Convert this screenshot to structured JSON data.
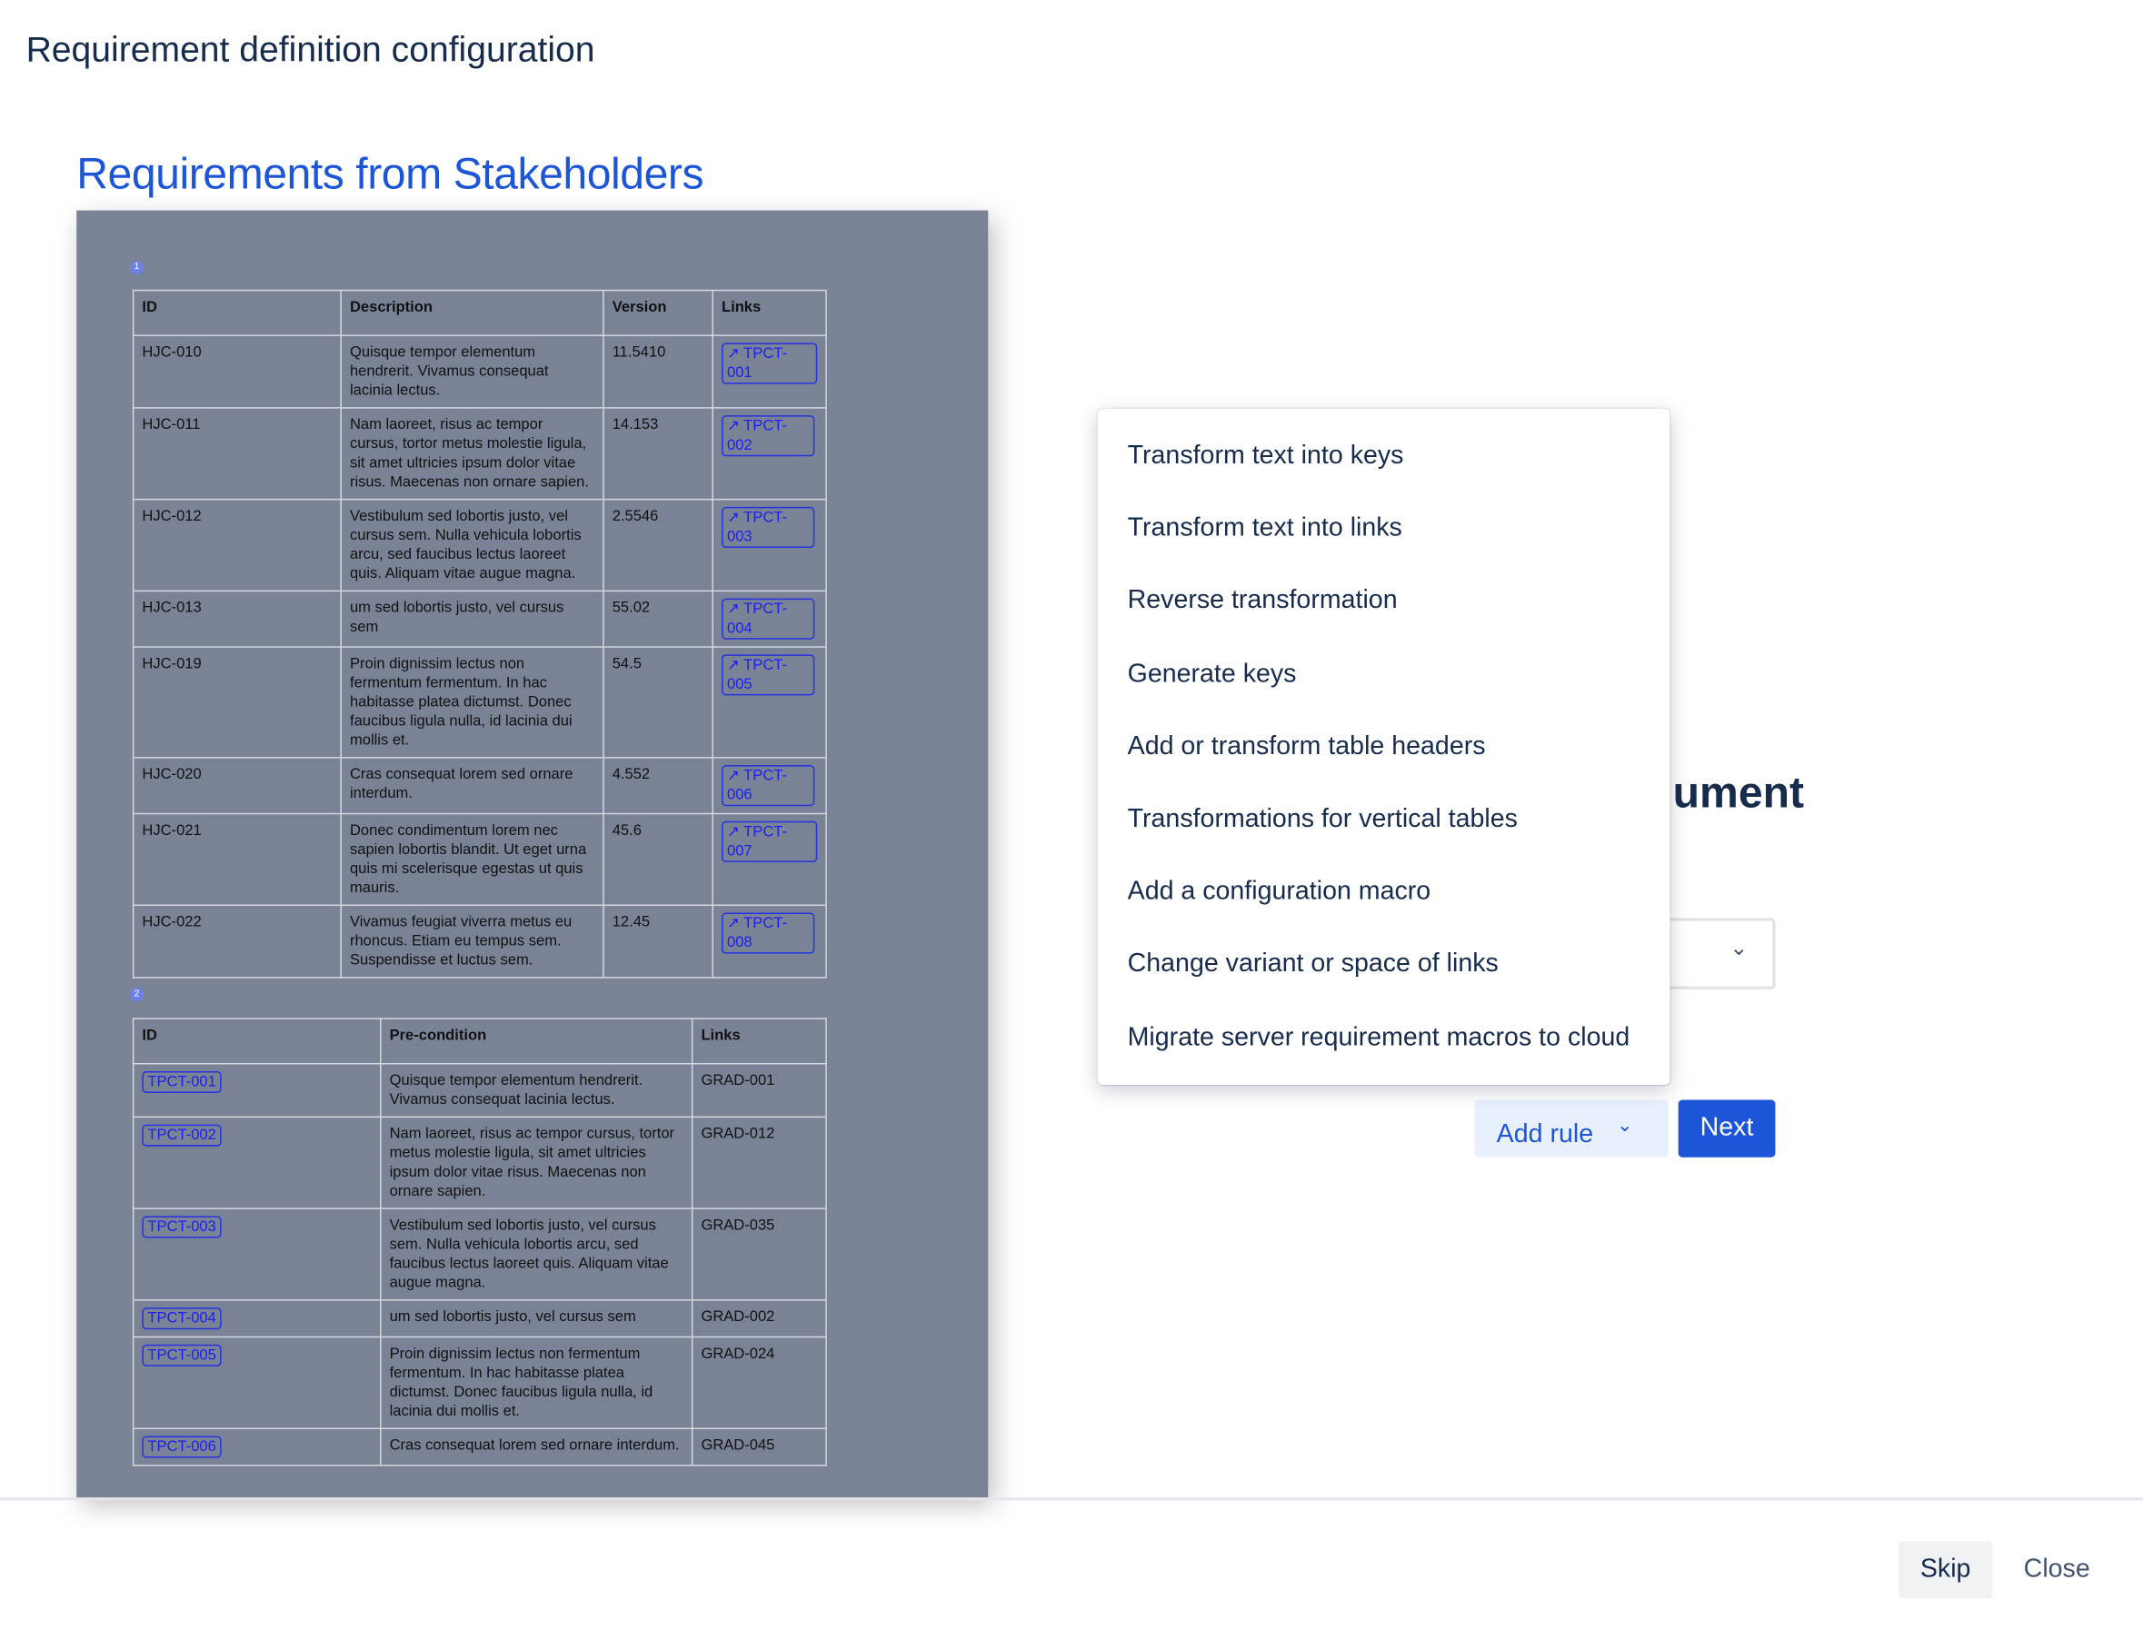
{
  "page_title": "Requirement definition configuration",
  "document_title": "Requirements from Stakeholders",
  "table1": {
    "badge": "1",
    "headers": [
      "ID",
      "Description",
      "Version",
      "Links"
    ],
    "rows": [
      [
        "HJC-010",
        "Quisque tempor elementum hendrerit. Vivamus consequat lacinia lectus.",
        "11.5410",
        "TPCT-001"
      ],
      [
        "HJC-011",
        "Nam laoreet, risus ac tempor cursus, tortor metus molestie ligula, sit amet ultricies ipsum dolor vitae risus. Maecenas non ornare sapien.",
        "14.153",
        "TPCT-002"
      ],
      [
        "HJC-012",
        "Vestibulum sed lobortis justo, vel cursus sem. Nulla vehicula lobortis arcu, sed faucibus lectus laoreet quis. Aliquam vitae augue magna.",
        "2.5546",
        "TPCT-003"
      ],
      [
        "HJC-013",
        "um sed lobortis justo, vel cursus sem",
        "55.02",
        "TPCT-004"
      ],
      [
        "HJC-019",
        "Proin dignissim lectus non fermentum fermentum. In hac habitasse platea dictumst. Donec faucibus ligula nulla, id lacinia dui mollis et.",
        "54.5",
        "TPCT-005"
      ],
      [
        "HJC-020",
        "Cras consequat lorem sed ornare interdum.",
        "4.552",
        "TPCT-006"
      ],
      [
        "HJC-021",
        "Donec condimentum lorem nec sapien lobortis blandit. Ut eget urna quis mi scelerisque egestas ut quis mauris.",
        "45.6",
        "TPCT-007"
      ],
      [
        "HJC-022",
        "Vivamus feugiat viverra metus eu rhoncus. Etiam eu tempus sem. Suspendisse et luctus sem.",
        "12.45",
        "TPCT-008"
      ]
    ]
  },
  "table2": {
    "badge": "2",
    "headers": [
      "ID",
      "Pre-condition",
      "Links"
    ],
    "rows": [
      [
        "TPCT-001",
        "Quisque tempor elementum hendrerit. Vivamus consequat lacinia lectus.",
        "GRAD-001"
      ],
      [
        "TPCT-002",
        "Nam laoreet, risus ac tempor cursus, tortor metus molestie ligula, sit amet ultricies ipsum dolor vitae risus. Maecenas non ornare sapien.",
        "GRAD-012"
      ],
      [
        "TPCT-003",
        "Vestibulum sed lobortis justo, vel cursus sem. Nulla vehicula lobortis arcu, sed faucibus lectus laoreet quis. Aliquam vitae augue magna.",
        "GRAD-035"
      ],
      [
        "TPCT-004",
        "um sed lobortis justo, vel cursus sem",
        "GRAD-002"
      ],
      [
        "TPCT-005",
        "Proin dignissim lectus non fermentum fermentum. In hac habitasse platea dictumst. Donec faucibus ligula nulla, id lacinia dui mollis et.",
        "GRAD-024"
      ],
      [
        "TPCT-006",
        "Cras consequat lorem sed ornare interdum.",
        "GRAD-045"
      ]
    ]
  },
  "background_heading": "ument",
  "menu": {
    "items": [
      "Transform text into keys",
      "Transform text into links",
      "Reverse transformation",
      "Generate keys",
      "Add or transform table headers",
      "Transformations for vertical tables",
      "Add a configuration macro",
      "Change variant or space of links",
      "Migrate server requirement macros to cloud"
    ]
  },
  "buttons": {
    "add_rule": "Add rule",
    "next": "Next",
    "skip": "Skip",
    "close": "Close"
  },
  "icons": {
    "link": "arrow-up-right-icon",
    "chevron": "chevron-down-icon"
  },
  "colors": {
    "accent": "#1d55d8",
    "panel": "#7a8396",
    "link": "#1a1ef0"
  }
}
